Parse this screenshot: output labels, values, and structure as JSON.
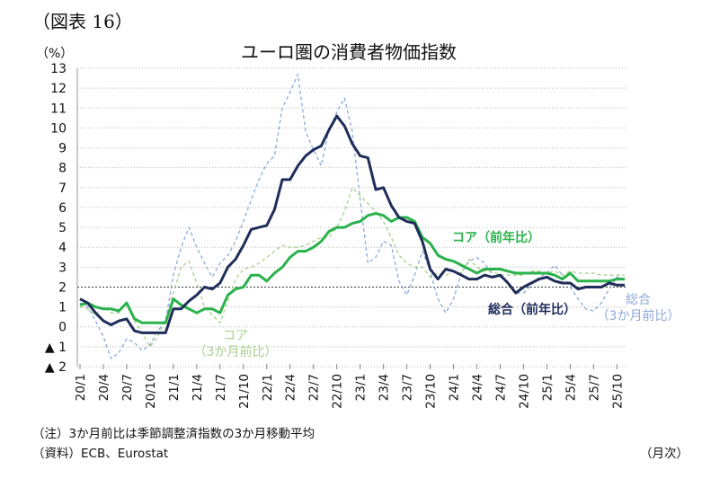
{
  "figure_label": "（図表 16）",
  "note": "（注）3か月前比は季節調整済指数の3か月移動平均",
  "source": "（資料）ECB、Eurostat",
  "chart_data": {
    "type": "line",
    "title": "ユーロ圏の消費者物価指数",
    "ylabel": "（%）",
    "xlabel": "（月次）",
    "ylim": [
      -2,
      13
    ],
    "yticks": [
      -2,
      -1,
      0,
      1,
      2,
      3,
      4,
      5,
      6,
      7,
      8,
      9,
      10,
      11,
      12,
      13
    ],
    "ytick_labels": [
      "▲ 2",
      "▲ 1",
      "0",
      "1",
      "2",
      "3",
      "4",
      "5",
      "6",
      "7",
      "8",
      "9",
      "10",
      "11",
      "12",
      "13"
    ],
    "x_ticks": [
      {
        "i": 0,
        "label": "20/1"
      },
      {
        "i": 3,
        "label": "20/4"
      },
      {
        "i": 6,
        "label": "20/7"
      },
      {
        "i": 9,
        "label": "20/10"
      },
      {
        "i": 12,
        "label": "21/1"
      },
      {
        "i": 15,
        "label": "21/4"
      },
      {
        "i": 18,
        "label": "21/7"
      },
      {
        "i": 21,
        "label": "21/10"
      },
      {
        "i": 24,
        "label": "22/1"
      },
      {
        "i": 27,
        "label": "22/4"
      },
      {
        "i": 30,
        "label": "22/7"
      },
      {
        "i": 33,
        "label": "22/10"
      },
      {
        "i": 36,
        "label": "23/1"
      },
      {
        "i": 39,
        "label": "23/4"
      },
      {
        "i": 42,
        "label": "23/7"
      },
      {
        "i": 45,
        "label": "23/10"
      },
      {
        "i": 48,
        "label": "24/1"
      },
      {
        "i": 51,
        "label": "24/4"
      },
      {
        "i": 54,
        "label": "24/7"
      },
      {
        "i": 57,
        "label": "24/10"
      },
      {
        "i": 60,
        "label": "25/1"
      },
      {
        "i": 63,
        "label": "25/4"
      },
      {
        "i": 66,
        "label": "25/7"
      },
      {
        "i": 69,
        "label": "25/10"
      }
    ],
    "reference_line": 2,
    "series": [
      {
        "name": "総合（前年比）",
        "label_lines": [
          "総合（前年比）"
        ],
        "color": "#1f2d5a",
        "style": "solid",
        "values": [
          1.4,
          1.2,
          0.7,
          0.3,
          0.1,
          0.3,
          0.4,
          -0.2,
          -0.3,
          -0.3,
          -0.3,
          -0.3,
          0.9,
          0.9,
          1.3,
          1.6,
          2.0,
          1.9,
          2.2,
          3.0,
          3.4,
          4.1,
          4.9,
          5.0,
          5.1,
          5.9,
          7.4,
          7.4,
          8.1,
          8.6,
          8.9,
          9.1,
          9.9,
          10.6,
          10.1,
          9.2,
          8.6,
          8.5,
          6.9,
          7.0,
          6.1,
          5.5,
          5.3,
          5.2,
          4.3,
          2.9,
          2.4,
          2.9,
          2.8,
          2.6,
          2.4,
          2.4,
          2.6,
          2.5,
          2.6,
          2.2,
          1.7,
          2.0,
          2.2,
          2.4,
          2.5,
          2.3,
          2.2,
          2.2,
          1.9,
          2.0,
          2.0,
          2.0,
          2.2,
          2.1,
          2.1
        ]
      },
      {
        "name": "総合（3か月前比）",
        "label_lines": [
          "総合",
          "（3か月前比）"
        ],
        "color": "#8ea9d8",
        "style": "dashed",
        "values": [
          1.2,
          1.0,
          0.3,
          -0.5,
          -1.6,
          -1.3,
          -0.6,
          -0.8,
          -1.2,
          -0.9,
          -0.2,
          0.3,
          2.6,
          4.0,
          5.0,
          4.0,
          3.2,
          2.5,
          3.2,
          3.6,
          4.3,
          5.3,
          6.4,
          7.4,
          8.2,
          8.6,
          11.0,
          11.8,
          12.7,
          9.8,
          8.9,
          8.1,
          9.9,
          10.8,
          11.5,
          9.8,
          6.4,
          3.2,
          3.5,
          4.3,
          4.1,
          2.3,
          1.6,
          2.6,
          3.8,
          2.8,
          1.4,
          0.7,
          1.4,
          2.7,
          3.3,
          3.5,
          3.2,
          2.6,
          2.5,
          2.3,
          1.7,
          1.7,
          2.1,
          2.5,
          2.7,
          3.1,
          2.6,
          2.0,
          1.4,
          0.9,
          0.8,
          1.2,
          1.9,
          2.5,
          2.4
        ]
      },
      {
        "name": "コア（前年比）",
        "label_lines": [
          "コア（前年比）"
        ],
        "color": "#2bb24c",
        "style": "solid",
        "values": [
          1.1,
          1.2,
          1.0,
          0.9,
          0.9,
          0.8,
          1.2,
          0.4,
          0.2,
          0.2,
          0.2,
          0.2,
          1.4,
          1.1,
          0.9,
          0.7,
          0.9,
          0.9,
          0.7,
          1.6,
          1.9,
          2.0,
          2.6,
          2.6,
          2.3,
          2.7,
          3.0,
          3.5,
          3.8,
          3.8,
          4.0,
          4.3,
          4.8,
          5.0,
          5.0,
          5.2,
          5.3,
          5.6,
          5.7,
          5.6,
          5.3,
          5.5,
          5.5,
          5.3,
          4.5,
          4.2,
          3.6,
          3.4,
          3.3,
          3.1,
          2.9,
          2.7,
          2.9,
          2.9,
          2.9,
          2.8,
          2.7,
          2.7,
          2.7,
          2.7,
          2.7,
          2.6,
          2.4,
          2.7,
          2.3,
          2.3,
          2.3,
          2.3,
          2.3,
          2.4,
          2.4
        ]
      },
      {
        "name": "コア（3か月前比）",
        "label_lines": [
          "コア",
          "（3か月前比）"
        ],
        "color": "#a8d18d",
        "style": "dashed",
        "values": [
          1.0,
          0.9,
          0.6,
          1.0,
          0.7,
          0.7,
          1.3,
          0.3,
          -0.3,
          -1.0,
          -0.5,
          0.4,
          1.7,
          3.0,
          3.3,
          2.2,
          1.0,
          0.6,
          0.2,
          1.3,
          2.4,
          2.9,
          3.0,
          3.2,
          3.5,
          3.8,
          4.1,
          4.0,
          4.0,
          4.1,
          4.3,
          4.5,
          4.5,
          5.0,
          5.8,
          7.0,
          6.6,
          6.2,
          5.8,
          5.3,
          4.5,
          3.6,
          3.2,
          3.0,
          3.0,
          2.5,
          2.7,
          2.6,
          2.8,
          2.7,
          3.4,
          3.0,
          2.8,
          2.8,
          2.6,
          2.6,
          2.6,
          2.6,
          2.8,
          2.8,
          2.7,
          2.8,
          2.6,
          2.8,
          2.7,
          2.7,
          2.7,
          2.6,
          2.6,
          2.6,
          2.6
        ]
      }
    ]
  }
}
